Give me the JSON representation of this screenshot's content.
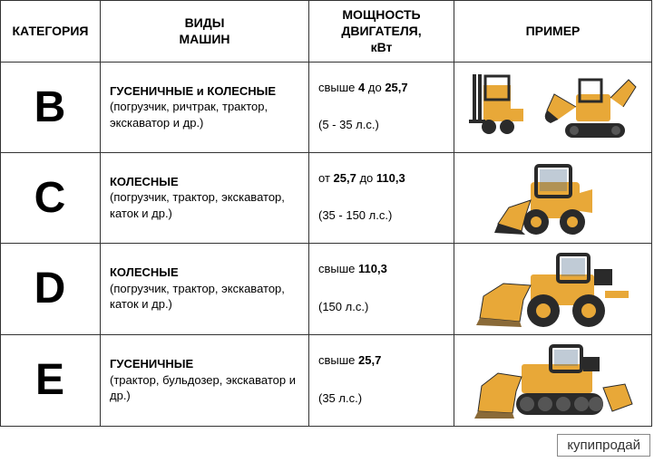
{
  "headers": {
    "category": "КАТЕГОРИЯ",
    "types": "ВИДЫ\nМАШИН",
    "power": "МОЩНОСТЬ\nДВИГАТЕЛЯ,\nкВт",
    "example": "ПРИМЕР"
  },
  "rows": [
    {
      "letter": "B",
      "type_title": "ГУСЕНИЧНЫЕ и КОЛЕСНЫЕ",
      "type_sub": "(погрузчик, ричтрак, трактор, экскаватор и др.)",
      "power_line1_pre": "свыше ",
      "power_line1_b1": "4",
      "power_line1_mid": " до ",
      "power_line1_b2": "25,7",
      "power_line2": "(5 - 35 л.с.)"
    },
    {
      "letter": "C",
      "type_title": "КОЛЕСНЫЕ",
      "type_sub": "(погрузчик, трактор, экскаватор, каток и др.)",
      "power_line1_pre": "от ",
      "power_line1_b1": "25,7",
      "power_line1_mid": " до ",
      "power_line1_b2": "110,3",
      "power_line2": "(35 - 150 л.с.)"
    },
    {
      "letter": "D",
      "type_title": "КОЛЕСНЫЕ",
      "type_sub": "(погрузчик, трактор, экскаватор, каток и др.)",
      "power_line1_pre": "свыше ",
      "power_line1_b1": "110,3",
      "power_line1_mid": "",
      "power_line1_b2": "",
      "power_line2": "(150 л.с.)"
    },
    {
      "letter": "E",
      "type_title": "ГУСЕНИЧНЫЕ",
      "type_sub": "(трактор, бульдозер, экскаватор и др.)",
      "power_line1_pre": "свыше ",
      "power_line1_b1": "25,7",
      "power_line1_mid": "",
      "power_line1_b2": "",
      "power_line2": "(35 л.с.)"
    }
  ],
  "watermark": "купипродай",
  "colors": {
    "machine_body": "#e8a838",
    "machine_dark": "#3a3a3a",
    "machine_cab": "#2a2a2a",
    "border": "#333333"
  }
}
